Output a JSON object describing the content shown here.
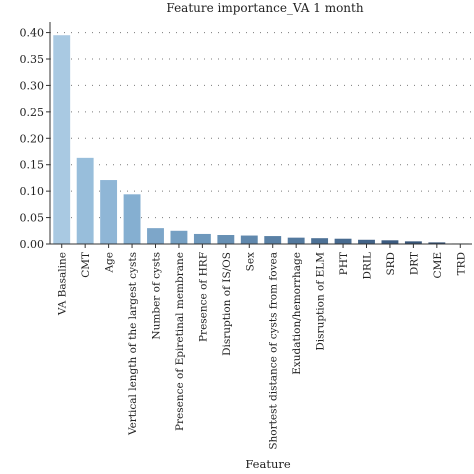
{
  "chart_data": {
    "type": "bar",
    "title": "Feature importance_VA 1 month",
    "xlabel": "Feature",
    "ylabel": "",
    "ylim": [
      0,
      0.42
    ],
    "yticks": [
      "0.00",
      "0.05",
      "0.10",
      "0.15",
      "0.20",
      "0.25",
      "0.30",
      "0.35",
      "0.40"
    ],
    "grid": true,
    "categories": [
      "VA Basaline",
      "CMT",
      "Age",
      "Vertical length of the largest cysts",
      "Number of cysts",
      "Presence of Epiretinal membrane",
      "Presence of HRF",
      "Disruption of IS/OS",
      "Sex",
      "Shortest distance of cysts from fovea",
      "Exudation/hemorrhage",
      "Disruption of ELM",
      "PHT",
      "DRIL",
      "SRD",
      "DRT",
      "CME",
      "TRD"
    ],
    "values": [
      0.395,
      0.163,
      0.121,
      0.094,
      0.03,
      0.025,
      0.019,
      0.017,
      0.016,
      0.015,
      0.012,
      0.011,
      0.01,
      0.008,
      0.007,
      0.005,
      0.003,
      0.001
    ],
    "colors": [
      "#a9c9e2",
      "#98bedb",
      "#8fb6d6",
      "#85afd1",
      "#7da6c9",
      "#76a0c3",
      "#6e98bc",
      "#6790b4",
      "#6088ad",
      "#5980a5",
      "#53799e",
      "#4d7196",
      "#476a8f",
      "#426388",
      "#3c5b80",
      "#375579",
      "#324e72",
      "#2e476b"
    ]
  }
}
